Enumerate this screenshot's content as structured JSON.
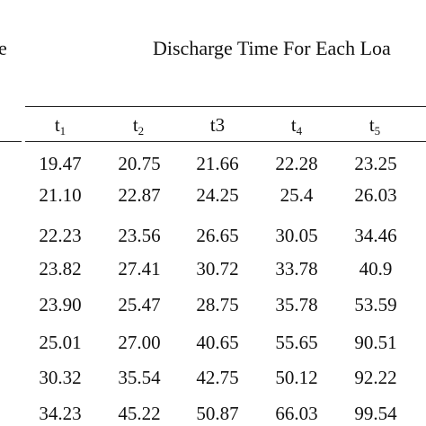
{
  "table": {
    "left_label_fragment": "e",
    "title": "Discharge Time For Each Loa",
    "headers": [
      {
        "base": "t",
        "sub": "1"
      },
      {
        "base": "t",
        "sub": "2"
      },
      {
        "base": "t3",
        "sub": ""
      },
      {
        "base": "t",
        "sub": "4"
      },
      {
        "base": "t",
        "sub": "5"
      }
    ],
    "rows": [
      [
        "19.47",
        "20.75",
        "21.66",
        "22.28",
        "23.25"
      ],
      [
        "21.10",
        "22.87",
        "24.25",
        "25.4",
        "26.03"
      ],
      [
        "22.23",
        "23.56",
        "26.65",
        "30.05",
        "34.46"
      ],
      [
        "23.82",
        "27.41",
        "30.72",
        "33.78",
        "40.9"
      ],
      [
        "23.90",
        "25.47",
        "28.75",
        "35.78",
        "53.59"
      ],
      [
        "25.01",
        "27.00",
        "40.65",
        "55.65",
        "90.51"
      ],
      [
        "30.32",
        "35.54",
        "42.75",
        "50.12",
        "92.22"
      ],
      [
        "34.23",
        "45.22",
        "50.87",
        "66.03",
        "99.54"
      ]
    ]
  }
}
